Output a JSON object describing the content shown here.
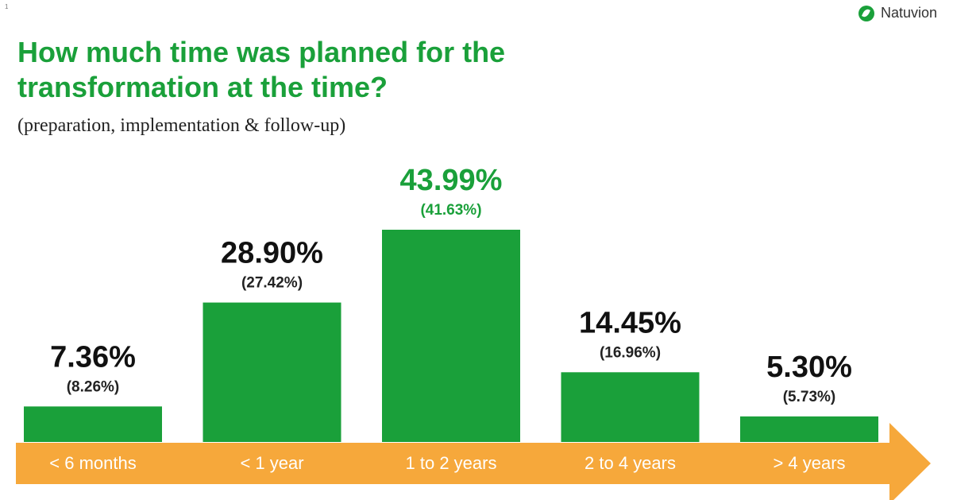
{
  "page_marker": "1",
  "brand": {
    "name": "Natuvion",
    "logo_icon": "leaf-icon"
  },
  "chart_data": {
    "type": "bar",
    "title": "How much time was planned for the transformation at the time?",
    "subtitle": "(preparation, implementation & follow-up)",
    "categories": [
      "< 6 months",
      "< 1 year",
      "1 to 2 years",
      "2 to 4 years",
      "> 4 years"
    ],
    "series": [
      {
        "values": [
          7.36,
          28.9,
          43.99,
          14.45,
          5.3
        ]
      },
      {
        "values": [
          8.26,
          27.42,
          41.63,
          16.96,
          5.73
        ]
      }
    ],
    "value_labels": [
      "7.36%",
      "28.90%",
      "43.99%",
      "14.45%",
      "5.30%"
    ],
    "secondary_labels": [
      "(8.26%)",
      "(27.42%)",
      "(41.63%)",
      "(16.96%)",
      "(5.73%)"
    ],
    "highlight_index": 2,
    "ylim": [
      0,
      43.99
    ],
    "grid": false,
    "colors": {
      "bar": "#1aa03a",
      "axis_arrow": "#f6a83b",
      "highlight_text": "#1aa03a",
      "label_text": "#111111"
    }
  }
}
